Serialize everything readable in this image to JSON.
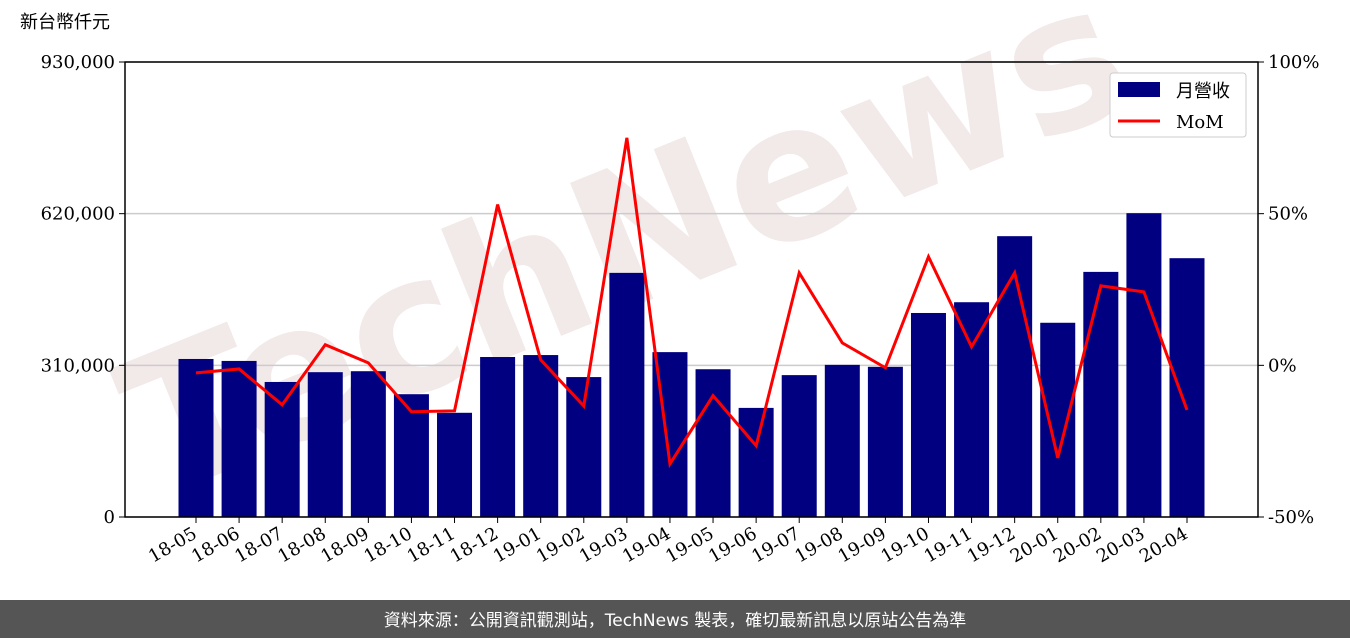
{
  "chart_data": {
    "type": "bar_line",
    "y_label": "新台幣仟元",
    "watermark": "TechNews",
    "footer": "資料來源：公開資訊觀測站，TechNews 製表，確切最新訊息以原站公告為準",
    "categories": [
      "18-05",
      "18-06",
      "18-07",
      "18-08",
      "18-09",
      "18-10",
      "18-11",
      "18-12",
      "19-01",
      "19-02",
      "19-03",
      "19-04",
      "19-05",
      "19-06",
      "19-07",
      "19-08",
      "19-09",
      "19-10",
      "19-11",
      "19-12",
      "20-01",
      "20-02",
      "20-03",
      "20-04"
    ],
    "series": [
      {
        "name": "月營收",
        "type": "bar",
        "color": "#000080",
        "values": [
          323000,
          319000,
          276000,
          296000,
          298000,
          251000,
          213000,
          327000,
          331000,
          286000,
          499000,
          337000,
          302000,
          223000,
          290000,
          311000,
          307000,
          417000,
          439000,
          574000,
          397000,
          501000,
          621000,
          529000
        ]
      },
      {
        "name": "MoM",
        "type": "line",
        "axis": "y2",
        "color": "#ff0000",
        "values": [
          -2.5,
          -1.2,
          -13,
          6.8,
          0.8,
          -15.3,
          -15,
          53,
          1.8,
          -13.4,
          75,
          -32.5,
          -10,
          -26.5,
          30.5,
          7.4,
          -0.8,
          35.8,
          6.1,
          30.5,
          -30.5,
          26.2,
          24.2,
          -14.7
        ]
      }
    ],
    "ylim": [
      0,
      930000
    ],
    "yticks": [
      {
        "value": 0,
        "label": "0"
      },
      {
        "value": 310000,
        "label": "310,000"
      },
      {
        "value": 620000,
        "label": "620,000"
      },
      {
        "value": 930000,
        "label": "930,000"
      }
    ],
    "y2lim": [
      -50,
      100
    ],
    "y2ticks": [
      {
        "value": -50,
        "label": "-50%"
      },
      {
        "value": 0,
        "label": "0%"
      },
      {
        "value": 50,
        "label": "50%"
      },
      {
        "value": 100,
        "label": "100%"
      }
    ],
    "grid": true,
    "legend": "upper right"
  }
}
